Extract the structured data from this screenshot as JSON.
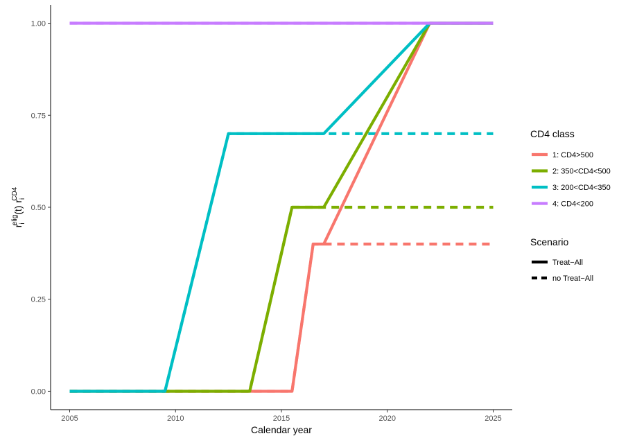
{
  "chart_data": {
    "type": "line",
    "xlabel": "Calendar year",
    "ylabel": {
      "parts": [
        {
          "text": "r",
          "style": "base"
        },
        {
          "text": "i",
          "style": "sub"
        },
        {
          "text": "elig",
          "style": "sup"
        },
        {
          "text": "(t) r",
          "style": "base"
        },
        {
          "text": "i",
          "style": "sub"
        },
        {
          "text": "CD4",
          "style": "sup"
        }
      ]
    },
    "xlim": [
      2004.1,
      2025.9
    ],
    "ylim": [
      -0.05,
      1.05
    ],
    "x_ticks": [
      2005,
      2010,
      2015,
      2020,
      2025
    ],
    "x_tick_labels": [
      "2005",
      "2010",
      "2015",
      "2020",
      "2025"
    ],
    "y_ticks": [
      0,
      0.25,
      0.5,
      0.75,
      1.0
    ],
    "y_tick_labels": [
      "0.00",
      "0.25",
      "0.50",
      "0.75",
      "1.00"
    ],
    "grid": false,
    "legend_position": "right",
    "color_legend": {
      "title": "CD4 class",
      "entries": [
        {
          "label": "1: CD4>500",
          "color": "#F8766D"
        },
        {
          "label": "2: 350<CD4<500",
          "color": "#7CAE00"
        },
        {
          "label": "3: 200<CD4<350",
          "color": "#00BFC4"
        },
        {
          "label": "4: CD4<200",
          "color": "#C77CFF"
        }
      ]
    },
    "linetype_legend": {
      "title": "Scenario",
      "entries": [
        {
          "label": "Treat−All",
          "dash": "solid"
        },
        {
          "label": "no Treat−All",
          "dash": "dashed"
        }
      ]
    },
    "series": [
      {
        "class": "1: CD4>500",
        "scenario": "no Treat−All",
        "color": "#F8766D",
        "dash": "dashed",
        "x": [
          2005,
          2015.5,
          2016.5,
          2025
        ],
        "y": [
          0,
          0,
          0.4,
          0.4
        ]
      },
      {
        "class": "2: 350<CD4<500",
        "scenario": "no Treat−All",
        "color": "#7CAE00",
        "dash": "dashed",
        "x": [
          2005,
          2013.5,
          2015.5,
          2025
        ],
        "y": [
          0,
          0,
          0.5,
          0.5
        ]
      },
      {
        "class": "3: 200<CD4<350",
        "scenario": "no Treat−All",
        "color": "#00BFC4",
        "dash": "dashed",
        "x": [
          2005,
          2009.5,
          2012.5,
          2025
        ],
        "y": [
          0,
          0,
          0.7,
          0.7
        ]
      },
      {
        "class": "4: CD4<200",
        "scenario": "no Treat−All",
        "color": "#C77CFF",
        "dash": "dashed",
        "x": [
          2005,
          2025
        ],
        "y": [
          1,
          1
        ]
      },
      {
        "class": "1: CD4>500",
        "scenario": "Treat−All",
        "color": "#F8766D",
        "dash": "solid",
        "x": [
          2005,
          2015.5,
          2016.5,
          2017,
          2022,
          2025
        ],
        "y": [
          0,
          0,
          0.4,
          0.4,
          1,
          1
        ]
      },
      {
        "class": "2: 350<CD4<500",
        "scenario": "Treat−All",
        "color": "#7CAE00",
        "dash": "solid",
        "x": [
          2005,
          2013.5,
          2015.5,
          2017,
          2022,
          2025
        ],
        "y": [
          0,
          0,
          0.5,
          0.5,
          1,
          1
        ]
      },
      {
        "class": "3: 200<CD4<350",
        "scenario": "Treat−All",
        "color": "#00BFC4",
        "dash": "solid",
        "x": [
          2005,
          2009.5,
          2012.5,
          2017,
          2022,
          2025
        ],
        "y": [
          0,
          0,
          0.7,
          0.7,
          1,
          1
        ]
      },
      {
        "class": "4: CD4<200",
        "scenario": "Treat−All",
        "color": "#C77CFF",
        "dash": "solid",
        "x": [
          2005,
          2025
        ],
        "y": [
          1,
          1
        ]
      }
    ]
  }
}
